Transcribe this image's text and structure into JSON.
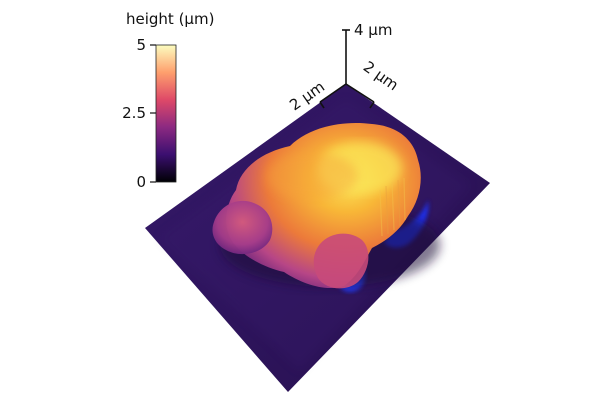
{
  "figure": {
    "colorbar": {
      "label": "height (µm)",
      "ticks": [
        "5",
        "2.5",
        "0"
      ],
      "range": [
        0,
        5
      ],
      "colormap": "inferno",
      "colors": [
        "#000004",
        "#3b0f70",
        "#8c2981",
        "#de4968",
        "#fe9f6d",
        "#fcfdbf"
      ]
    },
    "scale_axes": {
      "x_label": "2 µm",
      "y_label": "2 µm",
      "z_label": "4 µm"
    },
    "surface": {
      "substrate_color": "#2e1560",
      "edge_highlight_color": "#1e34ff",
      "object_colors": {
        "base": "#5b1e7a",
        "mid": "#c2457a",
        "high": "#f7a230",
        "peak": "#f8e24a"
      }
    }
  }
}
